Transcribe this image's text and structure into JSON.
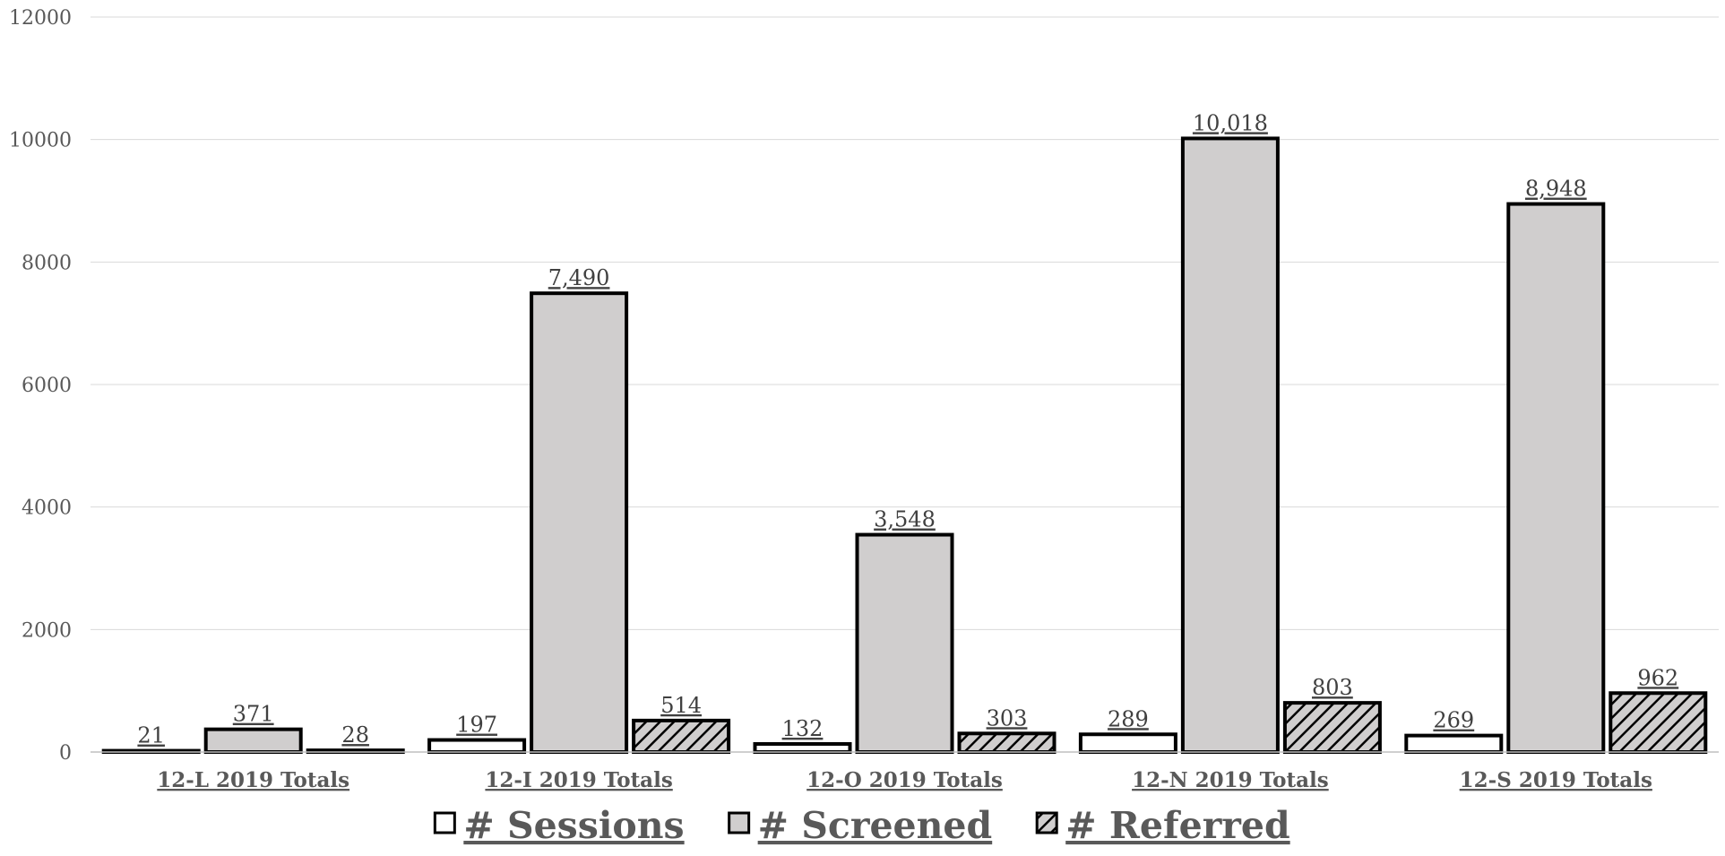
{
  "chart_data": {
    "type": "bar",
    "categories": [
      "12-L 2019 Totals",
      "12-I 2019 Totals",
      "12-O 2019 Totals",
      "12-N 2019 Totals",
      "12-S 2019 Totals"
    ],
    "series": [
      {
        "name": "# Sessions",
        "values": [
          21,
          197,
          132,
          289,
          269
        ],
        "labels": [
          "21",
          "197",
          "132",
          "289",
          "269"
        ],
        "fill": "#ffffff",
        "pattern": "none"
      },
      {
        "name": "# Screened",
        "values": [
          371,
          7490,
          3548,
          10018,
          8948
        ],
        "labels": [
          "371",
          "7,490",
          "3,548",
          "10,018",
          "8,948"
        ],
        "fill": "#d0cece",
        "pattern": "none"
      },
      {
        "name": "# Referred",
        "values": [
          28,
          514,
          303,
          803,
          962
        ],
        "labels": [
          "28",
          "514",
          "303",
          "803",
          "962"
        ],
        "fill": "#d0cece",
        "pattern": "diagonal-hatch"
      }
    ],
    "y_ticks": [
      "0",
      "2000",
      "4000",
      "6000",
      "8000",
      "10000",
      "12000"
    ],
    "ylim": [
      0,
      12000
    ],
    "grid": true,
    "legend_position": "bottom-center",
    "title": "",
    "xlabel": "",
    "ylabel": ""
  }
}
